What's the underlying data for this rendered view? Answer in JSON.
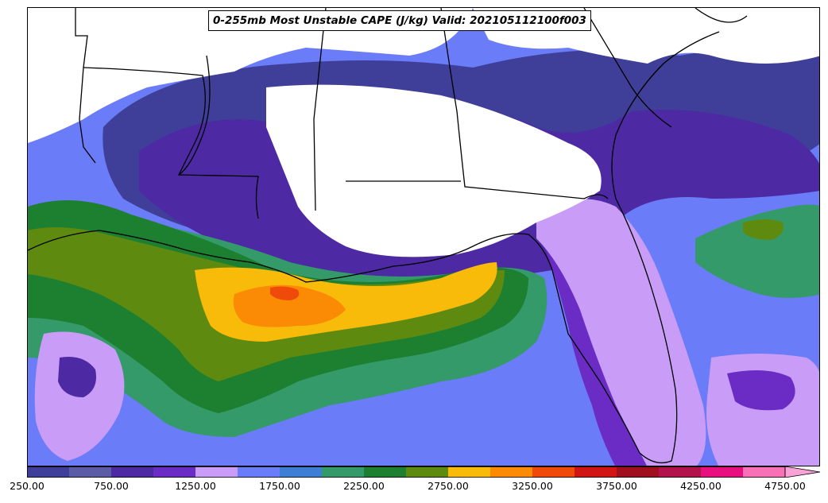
{
  "title": "0-255mb Most Unstable CAPE (J/kg) Valid: 202105112100f003",
  "colors": {
    "c250": "#3f3f99",
    "c500": "#5b5ba6",
    "c750": "#4d2aa3",
    "c1000": "#6a2cc4",
    "c1250": "#c89cf7",
    "c1500": "#6a7cf7",
    "c1750": "#3d7fd4",
    "c2000": "#359a6a",
    "c2250": "#1d7f30",
    "c2500": "#5e8a10",
    "c2750": "#f9bb0a",
    "c3000": "#fb8a05",
    "c3250": "#f04a0a",
    "c3500": "#d11414",
    "c3750": "#a00f1e",
    "c4000": "#b2134b",
    "c4250": "#e8107f",
    "c4500": "#f870b5",
    "c4750": "#f8a2d8",
    "land": "#ffffff",
    "border": "#000000"
  },
  "colorbar": {
    "levels": [
      250,
      500,
      750,
      1000,
      1250,
      1500,
      1750,
      2000,
      2250,
      2500,
      2750,
      3000,
      3250,
      3500,
      3750,
      4000,
      4250,
      4500,
      4750
    ],
    "colors": [
      "#3f3f99",
      "#5b5ba6",
      "#4d2aa3",
      "#6a2cc4",
      "#c89cf7",
      "#6a7cf7",
      "#3d7fd4",
      "#359a6a",
      "#1d7f30",
      "#5e8a10",
      "#f9bb0a",
      "#fb8a05",
      "#f04a0a",
      "#d11414",
      "#a00f1e",
      "#b2134b",
      "#e8107f",
      "#f870b5",
      "#f8a2d8"
    ],
    "ticks": [
      "250.00",
      "750.00",
      "1250.00",
      "1750.00",
      "2250.00",
      "2750.00",
      "3250.00",
      "3750.00",
      "4250.00",
      "4750.00"
    ],
    "extend": "max"
  }
}
